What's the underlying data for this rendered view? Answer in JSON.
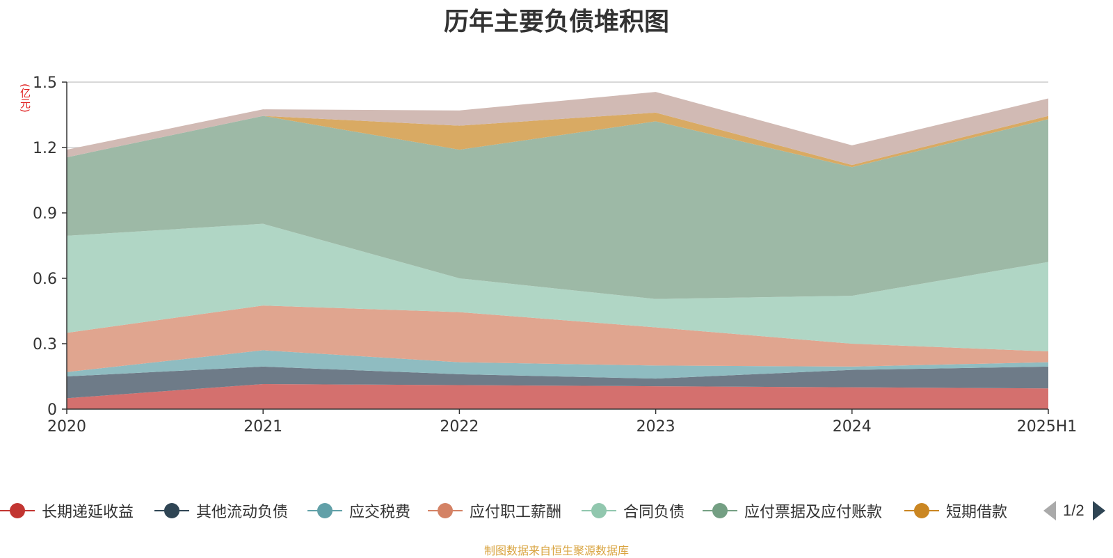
{
  "title": "历年主要负债堆积图",
  "y_unit": "(亿元)",
  "footer": "制图数据来自恒生聚源数据库",
  "legend_pager": "1/2",
  "chart_data": {
    "type": "area",
    "stacked": true,
    "x": [
      "2020",
      "2021",
      "2022",
      "2023",
      "2024",
      "2025H1"
    ],
    "ylim": [
      0,
      1.5
    ],
    "yticks": [
      "0",
      "0.3",
      "0.6",
      "0.9",
      "1.2",
      "1.5"
    ],
    "ytick_values": [
      0,
      0.3,
      0.6,
      0.9,
      1.2,
      1.5
    ],
    "grid": true,
    "legend_position": "bottom",
    "series": [
      {
        "name": "长期递延收益",
        "color": "#d4706e",
        "values": [
          0.05,
          0.115,
          0.11,
          0.105,
          0.1,
          0.095
        ]
      },
      {
        "name": "其他流动负债",
        "color": "#6e7b88",
        "values": [
          0.1,
          0.08,
          0.05,
          0.035,
          0.08,
          0.1
        ]
      },
      {
        "name": "应交税费",
        "color": "#8fbcc1",
        "values": [
          0.02,
          0.075,
          0.055,
          0.06,
          0.015,
          0.02
        ]
      },
      {
        "name": "应付职工薪酬",
        "color": "#e0a58f",
        "values": [
          0.18,
          0.205,
          0.23,
          0.175,
          0.105,
          0.05
        ]
      },
      {
        "name": "合同负债",
        "color": "#b0d6c5",
        "values": [
          0.445,
          0.375,
          0.155,
          0.13,
          0.22,
          0.41
        ]
      },
      {
        "name": "应付票据及应付账款",
        "color": "#9db9a6",
        "values": [
          0.36,
          0.495,
          0.59,
          0.815,
          0.59,
          0.655
        ]
      },
      {
        "name": "短期借款",
        "color": "#d9aa63",
        "values": [
          0.0,
          0.0,
          0.11,
          0.04,
          0.01,
          0.015
        ]
      },
      {
        "color": "#d1bab4",
        "values": [
          0.035,
          0.03,
          0.07,
          0.095,
          0.09,
          0.08
        ]
      }
    ]
  },
  "legend_items": [
    {
      "label": "长期递延收益",
      "color": "#c23531"
    },
    {
      "label": "其他流动负债",
      "color": "#2f4554"
    },
    {
      "label": "应交税费",
      "color": "#61a0a8"
    },
    {
      "label": "应付职工薪酬",
      "color": "#d48265"
    },
    {
      "label": "合同负债",
      "color": "#91c7ae"
    },
    {
      "label": "应付票据及应付账款",
      "color": "#749f83"
    },
    {
      "label": "短期借款",
      "color": "#ca8622"
    }
  ]
}
